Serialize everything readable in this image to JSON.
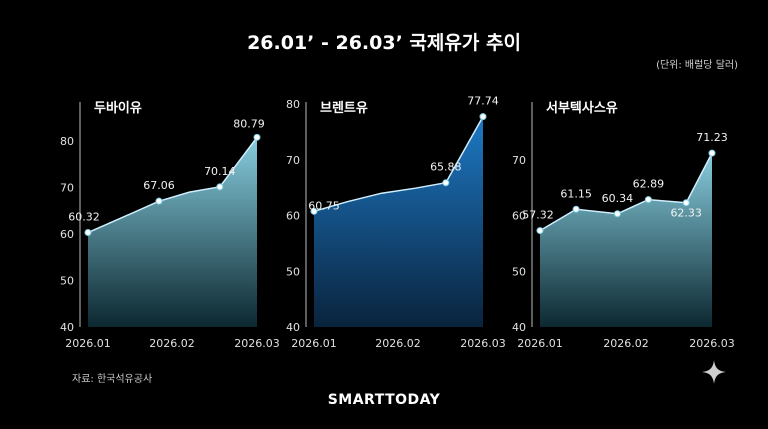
{
  "header": {
    "title": "26.01’ - 26.03’ 국제유가 추이",
    "unit_note": "(단위: 배럴당 달러)"
  },
  "footer": {
    "source": "자료: 한국석유공사",
    "brand": "SMARTTODAY"
  },
  "icons": {
    "corner": "sparkle-icon"
  },
  "colors": {
    "background": "#000000",
    "dubai_fill_top": "#8fd8ea",
    "dubai_fill_bottom": "#0d2a33",
    "brent_fill_top": "#1f7fcf",
    "brent_fill_bottom": "#0a2540",
    "wti_fill_top": "#8fd8ea",
    "wti_fill_bottom": "#0d2a33"
  },
  "chart_data": [
    {
      "type": "area",
      "title": "두바이유",
      "x": [
        "2026.01",
        "",
        "2026.02",
        "",
        "2026.03"
      ],
      "xticks": [
        "2026.01",
        "2026.02",
        "2026.03"
      ],
      "points": [
        {
          "x": 0.0,
          "y": 60.32,
          "label": "60.32"
        },
        {
          "x": 0.42,
          "y": 67.06,
          "label": "67.06"
        },
        {
          "x": 0.78,
          "y": 70.14,
          "label": "70.14"
        },
        {
          "x": 1.0,
          "y": 80.79,
          "label": "80.79"
        }
      ],
      "curve": [
        [
          0.0,
          60.32
        ],
        [
          0.2,
          63.5
        ],
        [
          0.42,
          67.06
        ],
        [
          0.6,
          69.0
        ],
        [
          0.78,
          70.14
        ],
        [
          1.0,
          80.79
        ]
      ],
      "ylim": [
        40,
        85
      ],
      "yticks": [
        40,
        50,
        60,
        70,
        80
      ]
    },
    {
      "type": "area",
      "title": "브렌트유",
      "xticks": [
        "2026.01",
        "2026.02",
        "2026.03"
      ],
      "points": [
        {
          "x": 0.0,
          "y": 60.75,
          "label": "60.75"
        },
        {
          "x": 0.78,
          "y": 65.88,
          "label": "65.88"
        },
        {
          "x": 1.0,
          "y": 77.74,
          "label": "77.74"
        }
      ],
      "curve": [
        [
          0.0,
          60.75
        ],
        [
          0.2,
          62.5
        ],
        [
          0.4,
          64.0
        ],
        [
          0.6,
          64.9
        ],
        [
          0.78,
          65.88
        ],
        [
          1.0,
          77.74
        ]
      ],
      "ylim": [
        40,
        80
      ],
      "yticks": [
        40,
        50,
        60,
        70,
        80
      ]
    },
    {
      "type": "area",
      "title": "서부텍사스유",
      "xticks": [
        "2026.01",
        "2026.02",
        "2026.03"
      ],
      "points": [
        {
          "x": 0.0,
          "y": 57.32,
          "label": "57.32"
        },
        {
          "x": 0.21,
          "y": 61.15,
          "label": "61.15"
        },
        {
          "x": 0.45,
          "y": 60.34,
          "label": "60.34"
        },
        {
          "x": 0.63,
          "y": 62.89,
          "label": "62.89"
        },
        {
          "x": 0.85,
          "y": 62.33,
          "label": "62.33"
        },
        {
          "x": 1.0,
          "y": 71.23,
          "label": "71.23"
        }
      ],
      "curve": [
        [
          0.0,
          57.32
        ],
        [
          0.21,
          61.15
        ],
        [
          0.45,
          60.34
        ],
        [
          0.63,
          62.89
        ],
        [
          0.85,
          62.33
        ],
        [
          1.0,
          71.23
        ]
      ],
      "ylim": [
        40,
        80
      ],
      "yticks": [
        40,
        50,
        60,
        70
      ]
    }
  ]
}
